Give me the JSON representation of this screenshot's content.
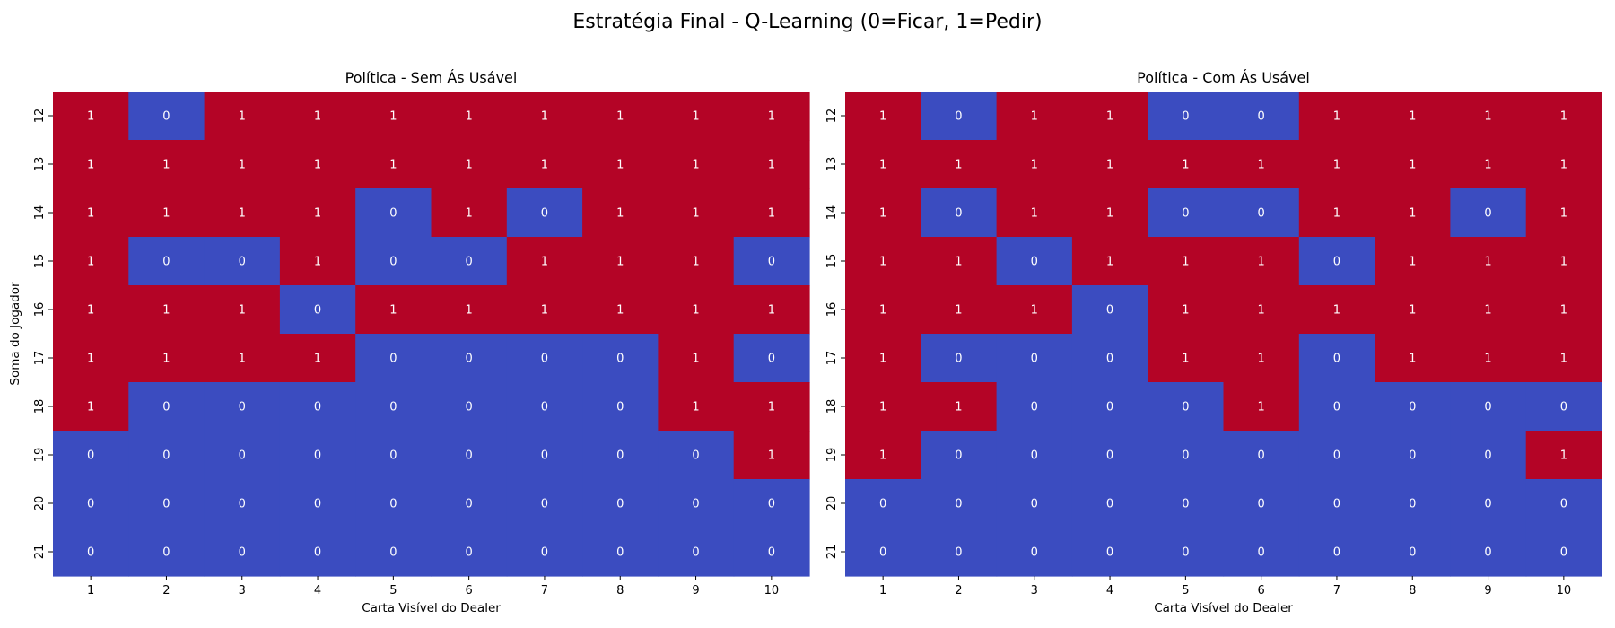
{
  "figure": {
    "title": "Estratégia Final - Q-Learning (0=Ficar, 1=Pedir)"
  },
  "chart_data": [
    {
      "type": "heatmap",
      "title": "Política - Sem Ás Usável",
      "xlabel": "Carta Visível do Dealer",
      "ylabel": "Soma do Jogador",
      "x_categories": [
        "1",
        "2",
        "3",
        "4",
        "5",
        "6",
        "7",
        "8",
        "9",
        "10"
      ],
      "y_categories": [
        "12",
        "13",
        "14",
        "15",
        "16",
        "17",
        "18",
        "19",
        "20",
        "21"
      ],
      "colormap": {
        "0": "#3b4cc0",
        "1": "#b40426"
      },
      "annotate": true,
      "values": [
        [
          1,
          0,
          1,
          1,
          1,
          1,
          1,
          1,
          1,
          1
        ],
        [
          1,
          1,
          1,
          1,
          1,
          1,
          1,
          1,
          1,
          1
        ],
        [
          1,
          1,
          1,
          1,
          0,
          1,
          0,
          1,
          1,
          1
        ],
        [
          1,
          0,
          0,
          1,
          0,
          0,
          1,
          1,
          1,
          0
        ],
        [
          1,
          1,
          1,
          0,
          1,
          1,
          1,
          1,
          1,
          1
        ],
        [
          1,
          1,
          1,
          1,
          0,
          0,
          0,
          0,
          1,
          0
        ],
        [
          1,
          0,
          0,
          0,
          0,
          0,
          0,
          0,
          1,
          1
        ],
        [
          0,
          0,
          0,
          0,
          0,
          0,
          0,
          0,
          0,
          1
        ],
        [
          0,
          0,
          0,
          0,
          0,
          0,
          0,
          0,
          0,
          0
        ],
        [
          0,
          0,
          0,
          0,
          0,
          0,
          0,
          0,
          0,
          0
        ]
      ]
    },
    {
      "type": "heatmap",
      "title": "Política - Com Ás Usável",
      "xlabel": "Carta Visível do Dealer",
      "ylabel": "",
      "x_categories": [
        "1",
        "2",
        "3",
        "4",
        "5",
        "6",
        "7",
        "8",
        "9",
        "10"
      ],
      "y_categories": [
        "12",
        "13",
        "14",
        "15",
        "16",
        "17",
        "18",
        "19",
        "20",
        "21"
      ],
      "colormap": {
        "0": "#3b4cc0",
        "1": "#b40426"
      },
      "annotate": true,
      "values": [
        [
          1,
          0,
          1,
          1,
          0,
          0,
          1,
          1,
          1,
          1
        ],
        [
          1,
          1,
          1,
          1,
          1,
          1,
          1,
          1,
          1,
          1
        ],
        [
          1,
          0,
          1,
          1,
          0,
          0,
          1,
          1,
          0,
          1
        ],
        [
          1,
          1,
          0,
          1,
          1,
          1,
          0,
          1,
          1,
          1
        ],
        [
          1,
          1,
          1,
          0,
          1,
          1,
          1,
          1,
          1,
          1
        ],
        [
          1,
          0,
          0,
          0,
          1,
          1,
          0,
          1,
          1,
          1
        ],
        [
          1,
          1,
          0,
          0,
          0,
          1,
          0,
          0,
          0,
          0
        ],
        [
          1,
          0,
          0,
          0,
          0,
          0,
          0,
          0,
          0,
          1
        ],
        [
          0,
          0,
          0,
          0,
          0,
          0,
          0,
          0,
          0,
          0
        ],
        [
          0,
          0,
          0,
          0,
          0,
          0,
          0,
          0,
          0,
          0
        ]
      ]
    }
  ]
}
